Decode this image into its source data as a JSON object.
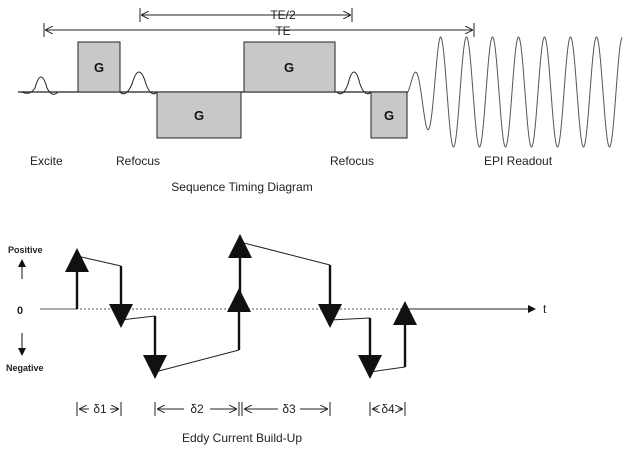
{
  "top": {
    "te_half_label": "TE/2",
    "te_label": "TE",
    "gradient_label": "G",
    "labels": {
      "excite": "Excite",
      "refocus_1": "Refocus",
      "refocus_2": "Refocus",
      "epi_readout": "EPI Readout"
    },
    "caption": "Sequence Timing Diagram"
  },
  "bottom": {
    "positive_label": "Positive",
    "zero_label": "0",
    "negative_label": "Negative",
    "time_label": "t",
    "intervals": [
      "δ1",
      "δ2",
      "δ3",
      "δ4"
    ],
    "caption": "Eddy Current Build-Up"
  },
  "colors": {
    "gradient_fill": "#c8c8c8",
    "line": "#222222"
  }
}
